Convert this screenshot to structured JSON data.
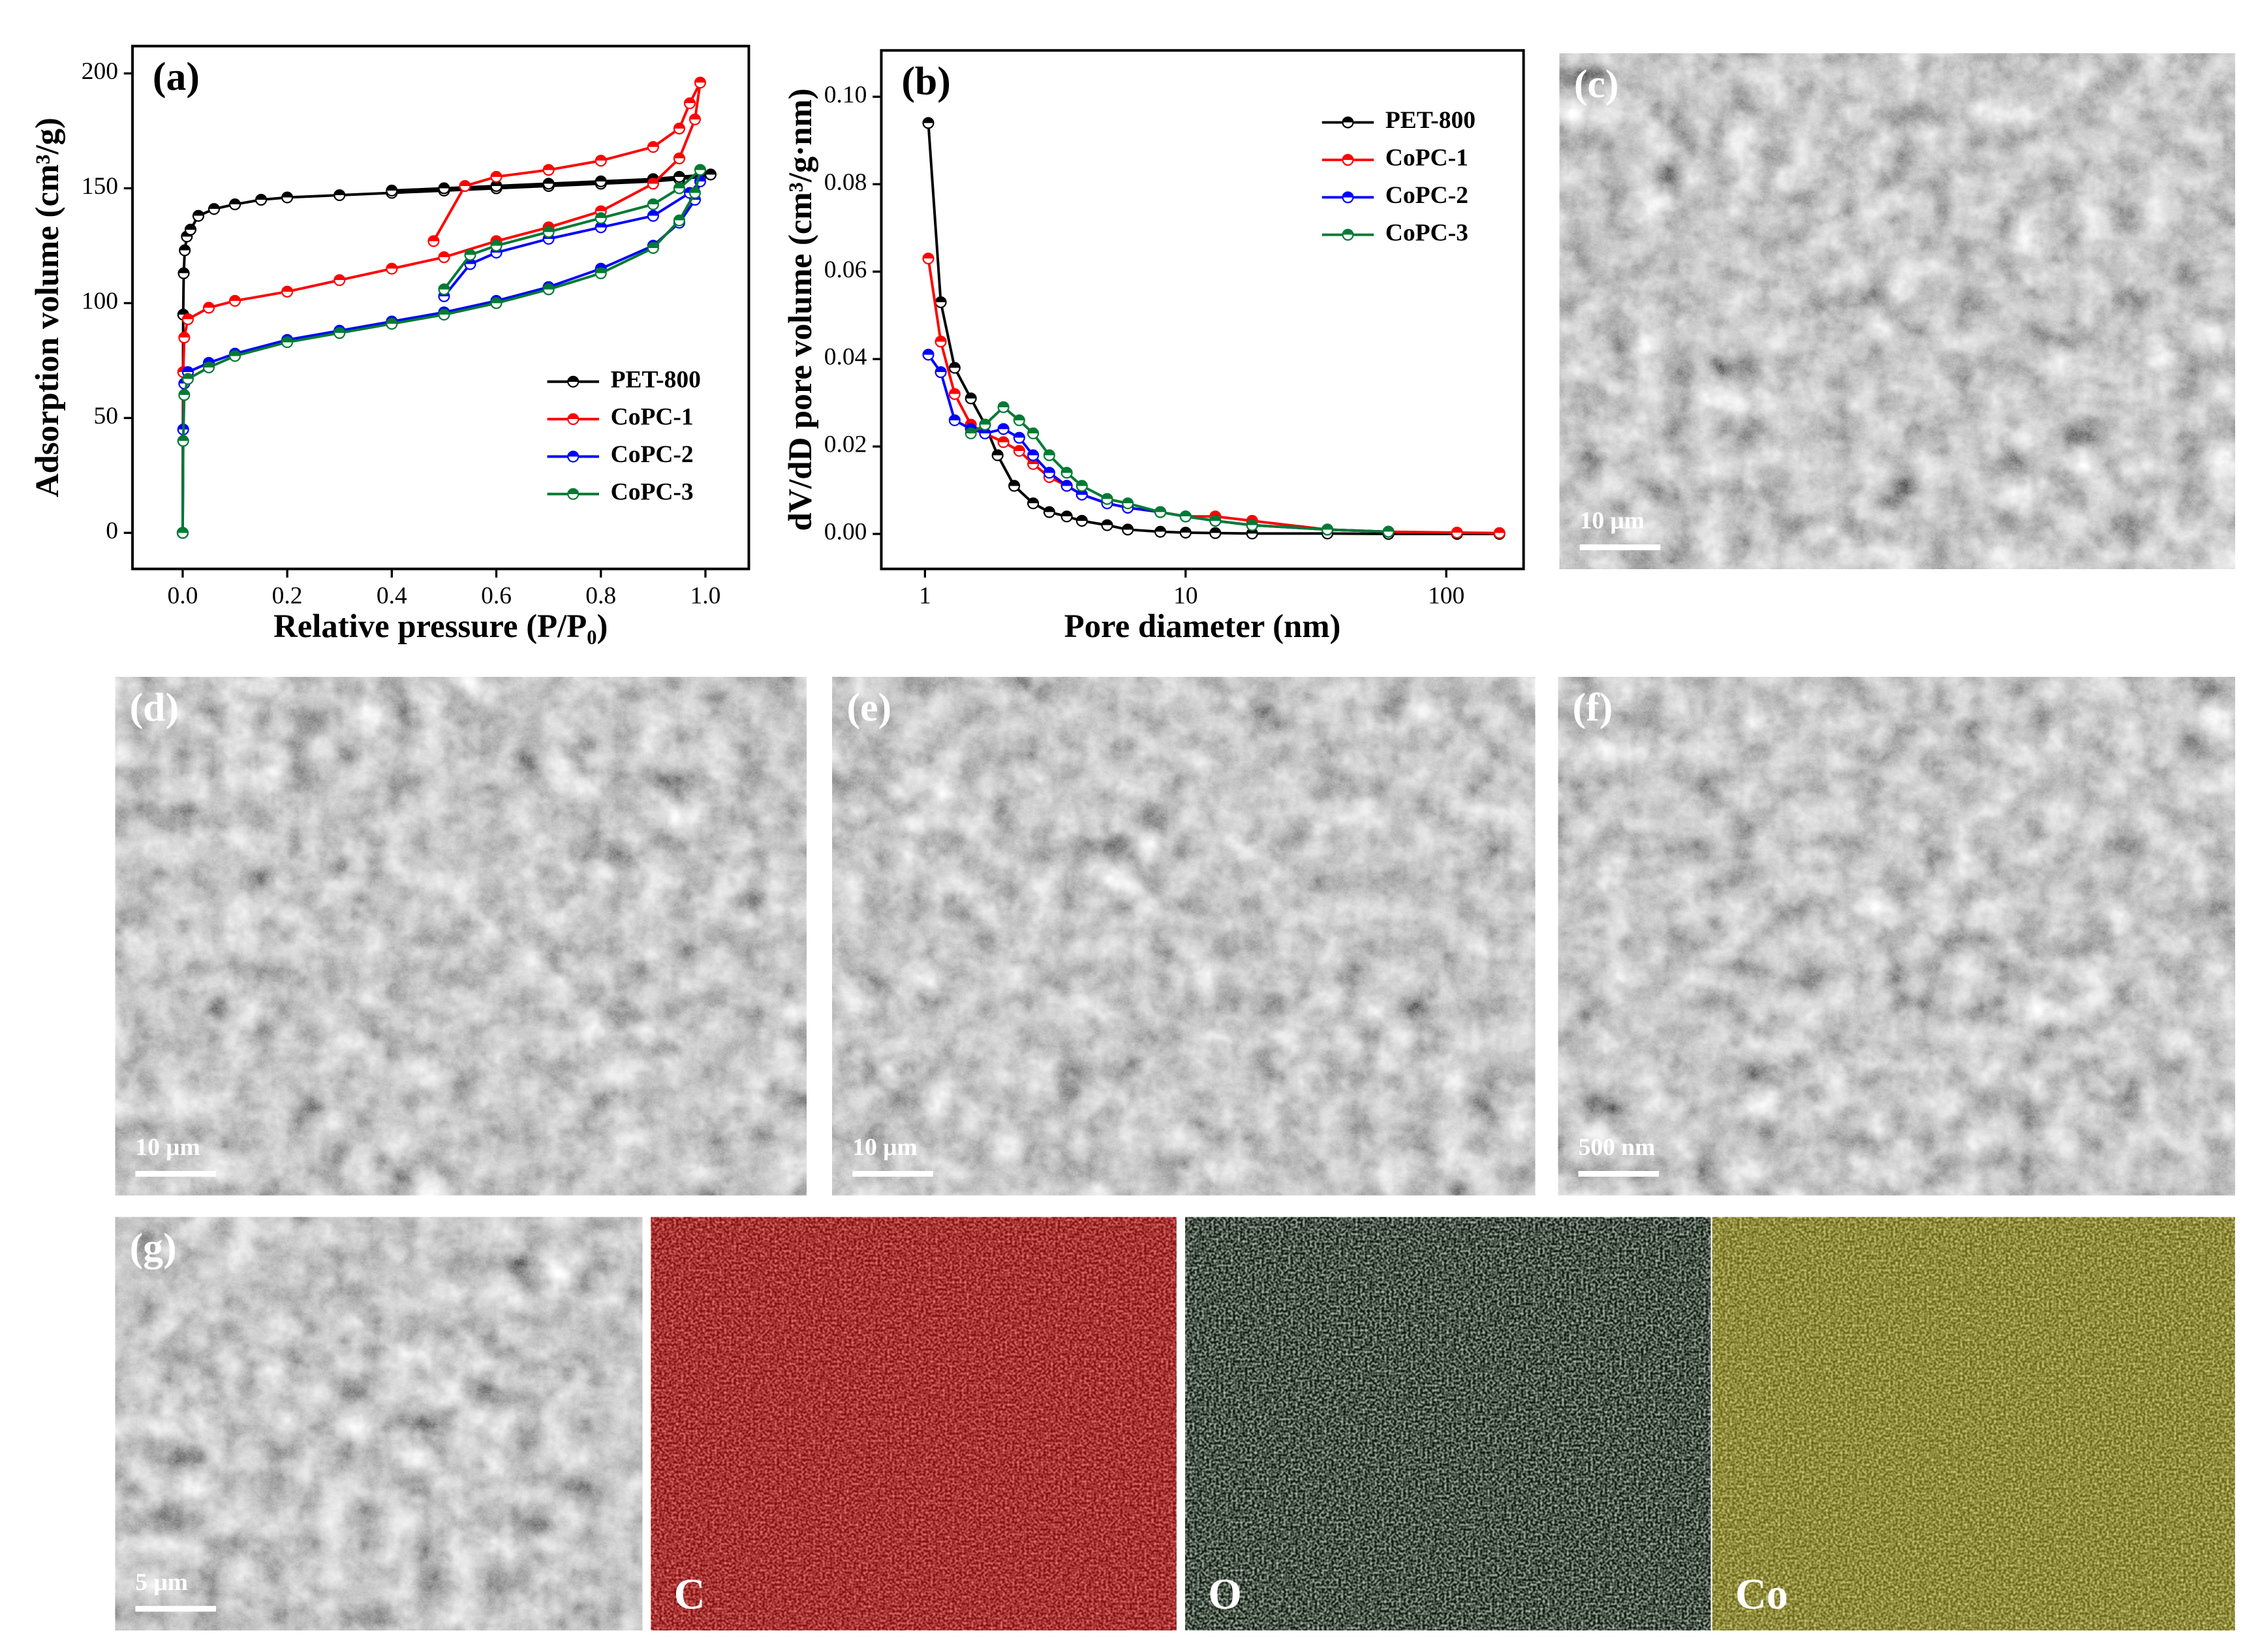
{
  "chart_data": [
    {
      "type": "line",
      "panel_label": "(a)",
      "x_label": "Relative pressure (P/P₀)",
      "y_label": "Adsorption volume (cm³/g)",
      "xlim": [
        -0.096,
        1.083
      ],
      "ylim": [
        -15.7,
        211.9
      ],
      "xticks": [
        {
          "value": 0,
          "label": "0.0"
        },
        0.2,
        0.4,
        0.6,
        0.8,
        {
          "value": 1,
          "label": "1.0"
        }
      ],
      "yticks": [
        0,
        50,
        100,
        150,
        200
      ],
      "legend": "lower right",
      "series": [
        {
          "name": "PET-800",
          "color": "#000000",
          "x": [
            0,
            0.001,
            0.002,
            0.004,
            0.008,
            0.015,
            0.03,
            0.06,
            0.1,
            0.15,
            0.2,
            0.3,
            0.4,
            0.5,
            0.6,
            0.7,
            0.8,
            0.9,
            0.95,
            0.99,
            1.01,
            0.95,
            0.9,
            0.8,
            0.7,
            0.6,
            0.5,
            0.4
          ],
          "values": [
            0,
            95,
            113,
            123,
            129,
            132,
            138,
            141,
            143,
            145,
            146,
            147,
            148,
            149,
            150,
            151,
            152,
            153,
            154,
            155,
            156,
            155,
            154,
            153,
            152,
            151,
            150,
            149
          ]
        },
        {
          "name": "CoPC-1",
          "color": "#ff0000",
          "x": [
            0,
            0.001,
            0.003,
            0.01,
            0.05,
            0.1,
            0.2,
            0.3,
            0.4,
            0.5,
            0.6,
            0.7,
            0.8,
            0.9,
            0.95,
            0.98,
            0.99,
            0.97,
            0.95,
            0.9,
            0.8,
            0.7,
            0.6,
            0.54,
            0.48
          ],
          "values": [
            0,
            70,
            85,
            93,
            98,
            101,
            105,
            110,
            115,
            120,
            127,
            133,
            140,
            152,
            163,
            180,
            196,
            187,
            176,
            168,
            162,
            158,
            155,
            151,
            127
          ]
        },
        {
          "name": "CoPC-2",
          "color": "#0000ff",
          "x": [
            0,
            0.001,
            0.003,
            0.01,
            0.05,
            0.1,
            0.2,
            0.3,
            0.4,
            0.5,
            0.6,
            0.7,
            0.8,
            0.9,
            0.95,
            0.98,
            0.99,
            0.97,
            0.9,
            0.8,
            0.7,
            0.6,
            0.55,
            0.5
          ],
          "values": [
            0,
            45,
            65,
            70,
            74,
            78,
            84,
            88,
            92,
            96,
            101,
            107,
            115,
            125,
            135,
            145,
            153,
            148,
            138,
            133,
            128,
            122,
            117,
            103
          ]
        },
        {
          "name": "CoPC-3",
          "color": "#007a33",
          "x": [
            0,
            0.001,
            0.003,
            0.01,
            0.05,
            0.1,
            0.2,
            0.3,
            0.4,
            0.5,
            0.6,
            0.7,
            0.8,
            0.9,
            0.95,
            0.98,
            0.99,
            0.95,
            0.9,
            0.8,
            0.7,
            0.6,
            0.55,
            0.5
          ],
          "values": [
            0,
            40,
            60,
            67,
            72,
            77,
            83,
            87,
            91,
            95,
            100,
            106,
            113,
            124,
            136,
            148,
            158,
            150,
            143,
            137,
            131,
            125,
            121,
            106
          ]
        }
      ]
    },
    {
      "type": "line",
      "panel_label": "(b)",
      "x_label": "Pore diameter (nm)",
      "y_label": "dV/dD pore volume (cm³/g·nm)",
      "xlim": [
        0.68,
        198
      ],
      "ylim": [
        -0.008,
        0.1106
      ],
      "log_x": true,
      "xticks": [
        1,
        10,
        100
      ],
      "yticks": [
        {
          "value": 0,
          "label": "0.00"
        },
        {
          "value": 0.02,
          "label": "0.02"
        },
        {
          "value": 0.04,
          "label": "0.04"
        },
        {
          "value": 0.06,
          "label": "0.06"
        },
        {
          "value": 0.08,
          "label": "0.08"
        },
        {
          "value": 0.1,
          "label": "0.10"
        }
      ],
      "legend": "upper right",
      "series": [
        {
          "name": "PET-800",
          "color": "#000000",
          "x": [
            1.03,
            1.15,
            1.3,
            1.5,
            1.7,
            1.9,
            2.2,
            2.6,
            3,
            3.5,
            4,
            5,
            6,
            8,
            10,
            13,
            18,
            35,
            60,
            110,
            160
          ],
          "values": [
            0.094,
            0.053,
            0.038,
            0.031,
            0.025,
            0.018,
            0.011,
            0.007,
            0.005,
            0.004,
            0.003,
            0.002,
            0.001,
            0.0005,
            0.0003,
            0.0002,
            0.0001,
            0.0001,
            0,
            0,
            0
          ]
        },
        {
          "name": "CoPC-1",
          "color": "#ff0000",
          "x": [
            1.03,
            1.15,
            1.3,
            1.5,
            1.7,
            2,
            2.3,
            2.6,
            3,
            3.5,
            4,
            5,
            6,
            8,
            10,
            13,
            18,
            35,
            60,
            110,
            160
          ],
          "values": [
            0.063,
            0.044,
            0.032,
            0.025,
            0.023,
            0.021,
            0.019,
            0.016,
            0.013,
            0.011,
            0.009,
            0.007,
            0.006,
            0.005,
            0.004,
            0.004,
            0.003,
            0.001,
            0.0005,
            0.0003,
            0.0002
          ]
        },
        {
          "name": "CoPC-2",
          "color": "#0000ff",
          "x": [
            1.03,
            1.15,
            1.3,
            1.5,
            1.7,
            2,
            2.3,
            2.6,
            3,
            3.5,
            4,
            5,
            6,
            8,
            10,
            13,
            18,
            35,
            60
          ],
          "values": [
            0.041,
            0.037,
            0.026,
            0.024,
            0.023,
            0.024,
            0.022,
            0.018,
            0.014,
            0.011,
            0.009,
            0.007,
            0.006,
            0.005,
            0.004,
            0.003,
            0.002,
            0.001,
            0.0005
          ]
        },
        {
          "name": "CoPC-3",
          "color": "#007a33",
          "x": [
            1.5,
            1.7,
            2,
            2.3,
            2.6,
            3,
            3.5,
            4,
            5,
            6,
            8,
            10,
            13,
            18,
            35,
            60
          ],
          "values": [
            0.023,
            0.025,
            0.029,
            0.026,
            0.023,
            0.018,
            0.014,
            0.011,
            0.008,
            0.007,
            0.005,
            0.004,
            0.003,
            0.002,
            0.001,
            0.0005
          ]
        }
      ]
    }
  ],
  "images": [
    {
      "label": "(c)",
      "scale_bar": "10 μm"
    },
    {
      "label": "(d)",
      "scale_bar": "10 μm"
    },
    {
      "label": "(e)",
      "scale_bar": "10 μm"
    },
    {
      "label": "(f)",
      "scale_bar": "500 nm"
    },
    {
      "label": "(g)",
      "scale_bar": "5 μm"
    },
    {
      "label": "C"
    },
    {
      "label": "O"
    },
    {
      "label": "Co"
    }
  ]
}
